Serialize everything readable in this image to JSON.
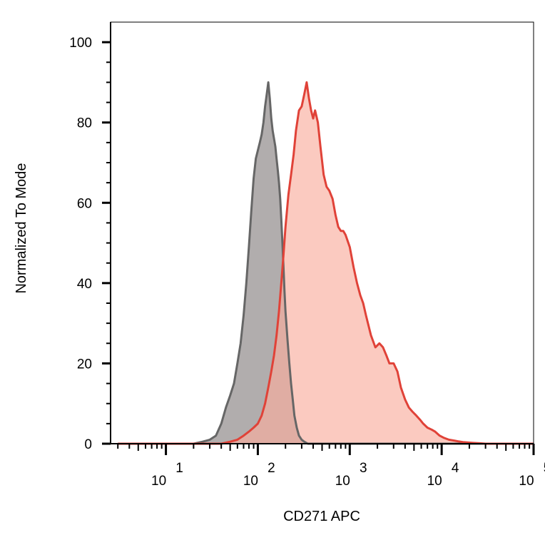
{
  "chart_data": {
    "type": "area",
    "title": "",
    "xlabel": "CD271 APC",
    "ylabel": "Normalized To Mode",
    "x_scale": "log",
    "xlim": [
      2.5,
      100000
    ],
    "ylim": [
      0,
      105
    ],
    "grid": false,
    "legend": "none",
    "y_ticks": [
      {
        "value": 0,
        "label": "0"
      },
      {
        "value": 20,
        "label": "20"
      },
      {
        "value": 40,
        "label": "40"
      },
      {
        "value": 60,
        "label": "60"
      },
      {
        "value": 80,
        "label": "80"
      },
      {
        "value": 100,
        "label": "100"
      }
    ],
    "x_ticks": [
      {
        "value": 10,
        "base": "10",
        "exp": "1"
      },
      {
        "value": 100,
        "base": "10",
        "exp": "2"
      },
      {
        "value": 1000,
        "base": "10",
        "exp": "3"
      },
      {
        "value": 10000,
        "base": "10",
        "exp": "4"
      },
      {
        "value": 100000,
        "base": "10",
        "exp": "5"
      }
    ],
    "series": [
      {
        "fill": "#b1adad",
        "stroke": "#666666",
        "x": [
          3,
          20,
          25,
          30,
          35,
          40,
          45,
          50,
          55,
          60,
          65,
          70,
          75,
          80,
          85,
          90,
          95,
          100,
          105,
          110,
          115,
          120,
          125,
          130,
          135,
          140,
          145,
          150,
          155,
          160,
          165,
          170,
          175,
          180,
          185,
          190,
          195,
          200,
          210,
          220,
          230,
          240,
          250,
          265,
          280,
          300,
          320,
          350,
          400,
          500,
          700,
          100000
        ],
        "y": [
          0,
          0,
          0.5,
          1,
          2,
          5,
          9,
          12,
          15,
          20,
          25,
          32,
          40,
          49,
          58,
          66,
          71,
          73,
          75,
          77,
          80,
          84,
          87,
          90,
          86,
          81,
          78,
          76,
          74,
          71,
          68,
          65,
          61,
          56,
          50,
          44,
          38,
          33,
          26,
          20,
          15,
          11,
          7,
          4,
          2,
          1,
          0.5,
          0,
          0,
          0,
          0,
          0
        ]
      },
      {
        "fill": "#f9ae9e",
        "stroke": "#e04238",
        "x": [
          3,
          40,
          50,
          60,
          70,
          80,
          90,
          100,
          110,
          120,
          130,
          140,
          150,
          160,
          170,
          180,
          190,
          200,
          215,
          230,
          245,
          260,
          280,
          300,
          320,
          340,
          360,
          380,
          400,
          420,
          450,
          480,
          520,
          560,
          600,
          650,
          700,
          750,
          800,
          850,
          900,
          1000,
          1100,
          1200,
          1300,
          1400,
          1500,
          1700,
          1900,
          2100,
          2300,
          2500,
          2700,
          3000,
          3300,
          3600,
          4000,
          4400,
          4800,
          5300,
          5800,
          6300,
          7000,
          7800,
          8500,
          9500,
          10500,
          12000,
          13500,
          15000,
          17000,
          19000,
          22000,
          26000,
          30000,
          36000,
          45000,
          60000,
          80000,
          100000
        ],
        "y": [
          0,
          0,
          0.5,
          1,
          2,
          3,
          4,
          5,
          7,
          10,
          14,
          18,
          22,
          27,
          33,
          40,
          47,
          54,
          62,
          67,
          72,
          78,
          83,
          84,
          87,
          90,
          86,
          83,
          81,
          83,
          80,
          74,
          67,
          64,
          63,
          61,
          57,
          54,
          53,
          53,
          52,
          49,
          44,
          40,
          37,
          35,
          32,
          27,
          24,
          25,
          24,
          22,
          20,
          20,
          18,
          14,
          11,
          9,
          8,
          7,
          6,
          5,
          4,
          3.5,
          3,
          2,
          1.5,
          1,
          0.8,
          0.6,
          0.4,
          0.3,
          0.2,
          0.1,
          0,
          0,
          0,
          0,
          0,
          0
        ]
      }
    ]
  }
}
